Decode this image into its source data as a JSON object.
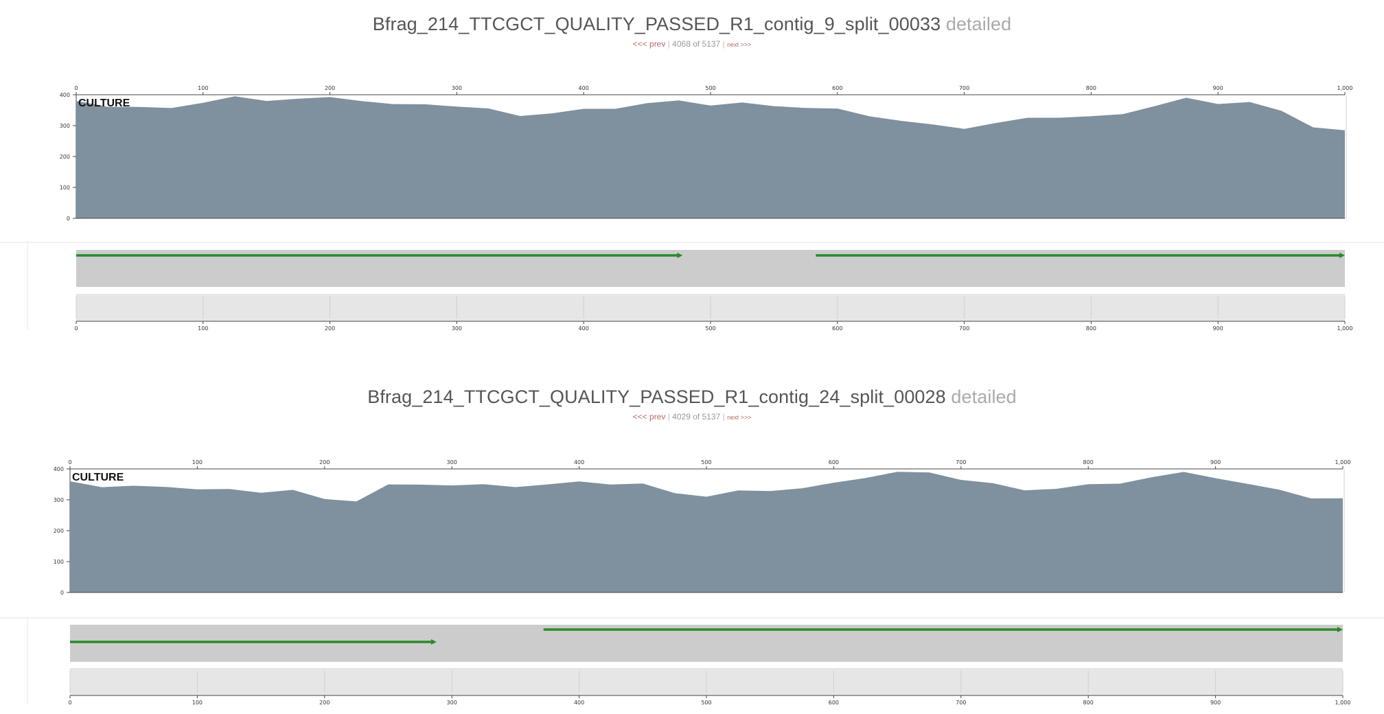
{
  "splits": [
    {
      "title": "Bfrag_214_TTCGCT_QUALITY_PASSED_R1_contig_9_split_00033",
      "title_suffix": "detailed",
      "nav": {
        "prev_label": "<<< prev",
        "position": "4068 of 5137",
        "next_label": "next >>>"
      }
    },
    {
      "title": "Bfrag_214_TTCGCT_QUALITY_PASSED_R1_contig_24_split_00028",
      "title_suffix": "detailed",
      "nav": {
        "prev_label": "<<< prev",
        "position": "4029 of 5137",
        "next_label": "next >>>"
      }
    }
  ],
  "colors": {
    "coverage_fill": "#7f909e",
    "gene_arrow": "#2a8a2a",
    "gene_track_bg": "#cccccc",
    "ruler_track_bg": "#e6e6e6"
  },
  "chart_data": [
    {
      "type": "area",
      "series": [
        {
          "name": "CULTURE",
          "x": [
            0,
            25,
            50,
            75,
            100,
            125,
            150,
            175,
            200,
            225,
            250,
            275,
            300,
            325,
            350,
            375,
            400,
            425,
            450,
            475,
            500,
            525,
            550,
            575,
            600,
            625,
            650,
            675,
            700,
            725,
            750,
            775,
            800,
            825,
            850,
            875,
            900,
            925,
            950,
            975,
            1000
          ],
          "values": [
            380,
            365,
            355,
            360,
            375,
            390,
            385,
            385,
            390,
            385,
            365,
            370,
            365,
            350,
            335,
            340,
            350,
            360,
            370,
            380,
            370,
            370,
            365,
            360,
            350,
            335,
            315,
            300,
            295,
            305,
            325,
            330,
            325,
            340,
            365,
            385,
            375,
            375,
            345,
            300,
            285
          ]
        }
      ],
      "x_ticks": [
        "0",
        "100",
        "200",
        "300",
        "400",
        "500",
        "600",
        "700",
        "800",
        "900",
        "1,000"
      ],
      "y_ticks": [
        "0",
        "100",
        "200",
        "300",
        "400"
      ],
      "xlim": [
        0,
        1000
      ],
      "ylim": [
        0,
        400
      ],
      "genes": [
        {
          "start": 0,
          "stop": 478,
          "direction": "forward"
        },
        {
          "start": 583,
          "stop": 1000,
          "direction": "forward"
        }
      ]
    },
    {
      "type": "area",
      "series": [
        {
          "name": "CULTURE",
          "x": [
            0,
            25,
            50,
            75,
            100,
            125,
            150,
            175,
            200,
            225,
            250,
            275,
            300,
            325,
            350,
            375,
            400,
            425,
            450,
            475,
            500,
            525,
            550,
            575,
            600,
            625,
            650,
            675,
            700,
            725,
            750,
            775,
            800,
            825,
            850,
            875,
            900,
            925,
            950,
            975,
            1000
          ],
          "values": [
            360,
            345,
            340,
            345,
            335,
            330,
            328,
            330,
            300,
            300,
            345,
            350,
            350,
            345,
            345,
            350,
            355,
            355,
            350,
            320,
            315,
            325,
            330,
            340,
            350,
            375,
            390,
            385,
            370,
            350,
            330,
            340,
            345,
            355,
            375,
            385,
            375,
            350,
            330,
            310,
            305
          ]
        }
      ],
      "x_ticks": [
        "0",
        "100",
        "200",
        "300",
        "400",
        "500",
        "600",
        "700",
        "800",
        "900",
        "1,000"
      ],
      "y_ticks": [
        "0",
        "100",
        "200",
        "300",
        "400"
      ],
      "xlim": [
        0,
        1000
      ],
      "ylim": [
        0,
        400
      ],
      "genes": [
        {
          "start": 0,
          "stop": 288,
          "direction": "forward"
        },
        {
          "start": 372,
          "stop": 1000,
          "direction": "forward"
        }
      ]
    }
  ]
}
